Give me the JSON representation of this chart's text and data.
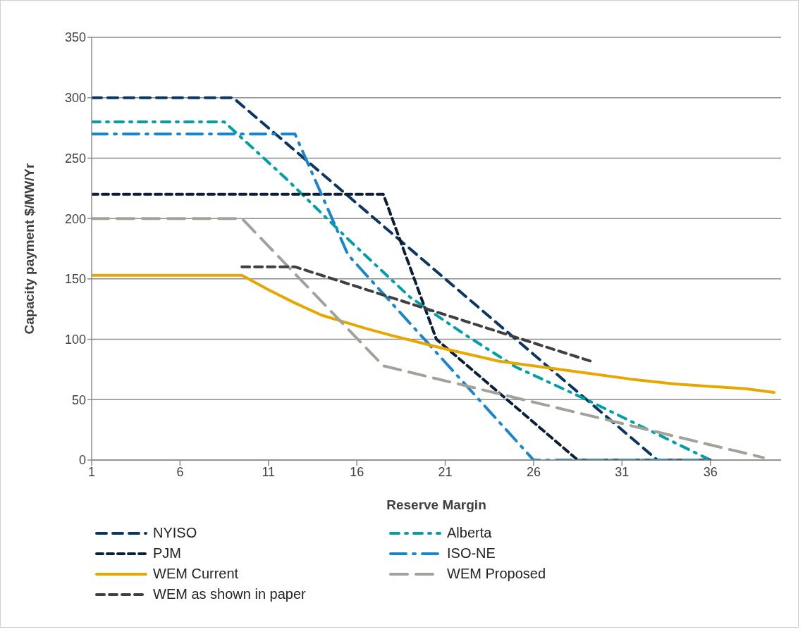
{
  "chart_data": {
    "type": "line",
    "xlabel": "Reserve Margin",
    "ylabel": "Capacity payment $/MW/Yr",
    "xlim": [
      1,
      40
    ],
    "xticks": [
      1,
      6,
      11,
      16,
      21,
      26,
      31,
      36
    ],
    "ylim": [
      0,
      350
    ],
    "yticks": [
      0,
      50,
      100,
      150,
      200,
      250,
      300,
      350
    ],
    "grid": "y",
    "legend": "bottom",
    "marker": "none",
    "series": [
      {
        "name": "NYISO",
        "color": "#0b3563",
        "line_style": "dashed",
        "x": [
          1,
          9,
          33,
          36
        ],
        "values": [
          300,
          300,
          0,
          0
        ]
      },
      {
        "name": "Alberta",
        "color": "#00a0a6",
        "line_style": "dashed",
        "x": [
          1,
          8.5,
          12,
          15.5,
          19,
          22,
          25,
          29,
          36
        ],
        "values": [
          280,
          280,
          233,
          183,
          135,
          105,
          77,
          50,
          0
        ]
      },
      {
        "name": "PJM",
        "color": "#0b2038",
        "line_style": "dashed",
        "x": [
          1,
          17.5,
          20.5,
          28.5,
          36
        ],
        "values": [
          220,
          220,
          100,
          0,
          0
        ]
      },
      {
        "name": "ISO-NE",
        "color": "#1a85cc",
        "line_style": "dashed",
        "x": [
          1,
          12.5,
          15.5,
          26,
          36
        ],
        "values": [
          270,
          270,
          170,
          0,
          0
        ]
      },
      {
        "name": "WEM Current",
        "color": "#e6a800",
        "line_style": "solid",
        "x": [
          1,
          9.5,
          11,
          12.5,
          14,
          16.5,
          18,
          21,
          24,
          26.5,
          29,
          31.5,
          34,
          36,
          38,
          39.6
        ],
        "values": [
          153,
          153,
          141,
          130,
          120,
          109,
          103,
          92,
          82,
          77,
          72,
          67,
          63,
          61,
          59,
          56
        ]
      },
      {
        "name": "WEM Proposed",
        "color": "#a0a39a",
        "line_style": "dashed",
        "x": [
          1,
          9.5,
          17.5,
          39
        ],
        "values": [
          200,
          200,
          78,
          2
        ]
      },
      {
        "name": "WEM as shown in paper",
        "color": "#404040",
        "line_style": "dashed",
        "x": [
          9.5,
          12.5,
          29.2
        ],
        "values": [
          160,
          160,
          82
        ]
      }
    ]
  }
}
